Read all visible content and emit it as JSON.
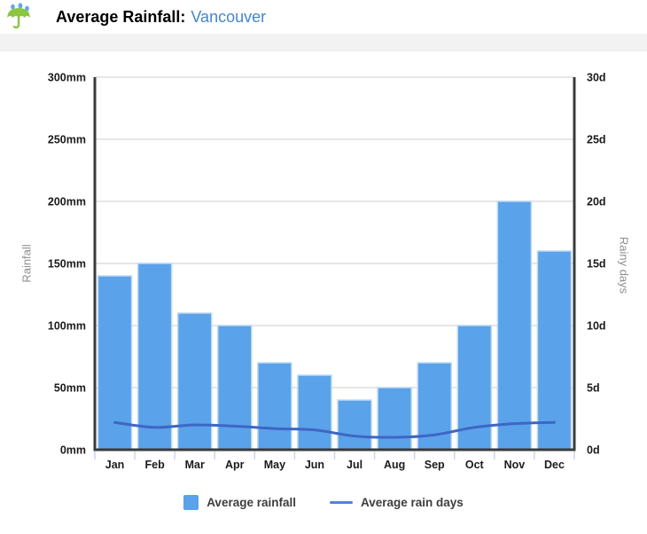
{
  "header": {
    "icon": "umbrella-rain-icon",
    "title": "Average Rainfall:",
    "city": "Vancouver"
  },
  "colors": {
    "bar": "#5aa2ea",
    "bar_border": "#bcd8f4",
    "line": "#3e66c4",
    "legend_line": "#5182e0",
    "grid": "#dedede",
    "axis": "#3b3b3b",
    "x_tick": "#c6d6ef",
    "tick_label": "#1b1b1b",
    "axis_title": "#8f8f8f",
    "city_text": "#4585ca"
  },
  "chart_data": {
    "type": "bar",
    "categories": [
      "Jan",
      "Feb",
      "Mar",
      "Apr",
      "May",
      "Jun",
      "Jul",
      "Aug",
      "Sep",
      "Oct",
      "Nov",
      "Dec"
    ],
    "series": [
      {
        "name": "Average rainfall",
        "type": "bar",
        "axis": "left",
        "unit": "mm",
        "values": [
          140,
          150,
          110,
          100,
          70,
          60,
          40,
          50,
          70,
          100,
          200,
          160
        ]
      },
      {
        "name": "Average rain days",
        "type": "line",
        "axis": "right",
        "unit": "d",
        "values": [
          2.2,
          1.8,
          2.0,
          1.9,
          1.7,
          1.6,
          1.1,
          1.0,
          1.2,
          1.8,
          2.1,
          2.2
        ]
      }
    ],
    "title": "Average Rainfall: Vancouver",
    "left_axis": {
      "label": "Rainfall",
      "min": 0,
      "max": 300,
      "step": 50,
      "suffix": "mm"
    },
    "right_axis": {
      "label": "Rainy days",
      "min": 0,
      "max": 30,
      "step": 5,
      "suffix": "d"
    },
    "grid": true,
    "legend_position": "bottom"
  },
  "legend": {
    "items": [
      {
        "label": "Average rainfall",
        "swatch": "square"
      },
      {
        "label": "Average rain days",
        "swatch": "line"
      }
    ]
  }
}
